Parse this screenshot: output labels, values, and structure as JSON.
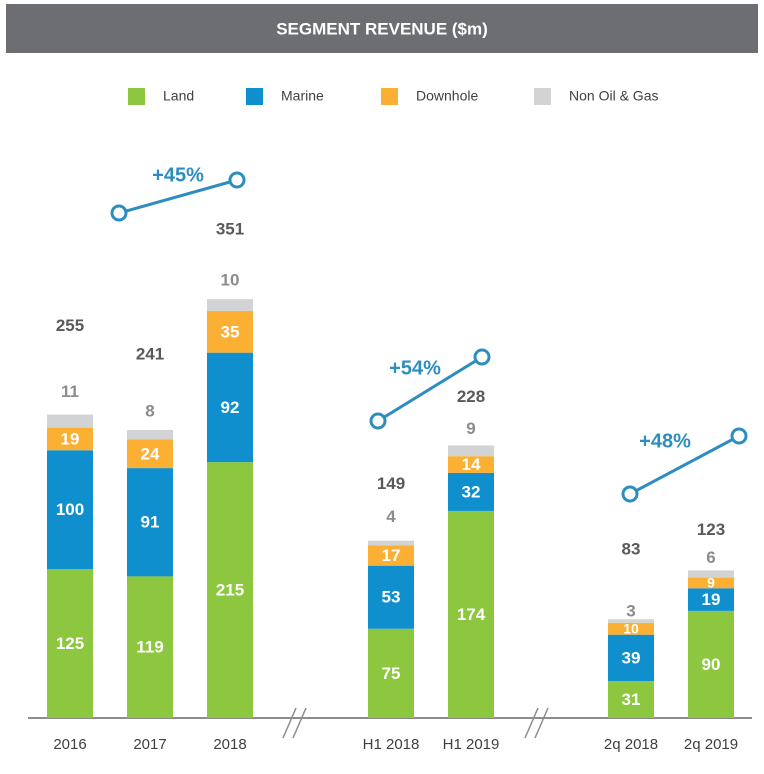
{
  "chart_data": {
    "type": "stacked_bar",
    "title": "SEGMENT REVENUE ($m)",
    "categories": [
      "2016",
      "2017",
      "2018",
      "H1 2018",
      "H1 2019",
      "2q 2018",
      "2q 2019"
    ],
    "series": [
      {
        "name": "Land",
        "color": "#8dc63f",
        "values": [
          125,
          119,
          215,
          75,
          174,
          31,
          90
        ]
      },
      {
        "name": "Marine",
        "color": "#0f8fce",
        "values": [
          100,
          91,
          92,
          53,
          32,
          39,
          19
        ]
      },
      {
        "name": "Downhole",
        "color": "#fbb034",
        "values": [
          19,
          24,
          35,
          17,
          14,
          10,
          9
        ]
      },
      {
        "name": "Non Oil & Gas",
        "color": "#d1d3d4",
        "values": [
          11,
          8,
          10,
          4,
          9,
          3,
          6
        ]
      }
    ],
    "totals": [
      255,
      241,
      351,
      149,
      228,
      83,
      123
    ],
    "annotations": [
      "+45%",
      "+54%",
      "+48%"
    ]
  }
}
